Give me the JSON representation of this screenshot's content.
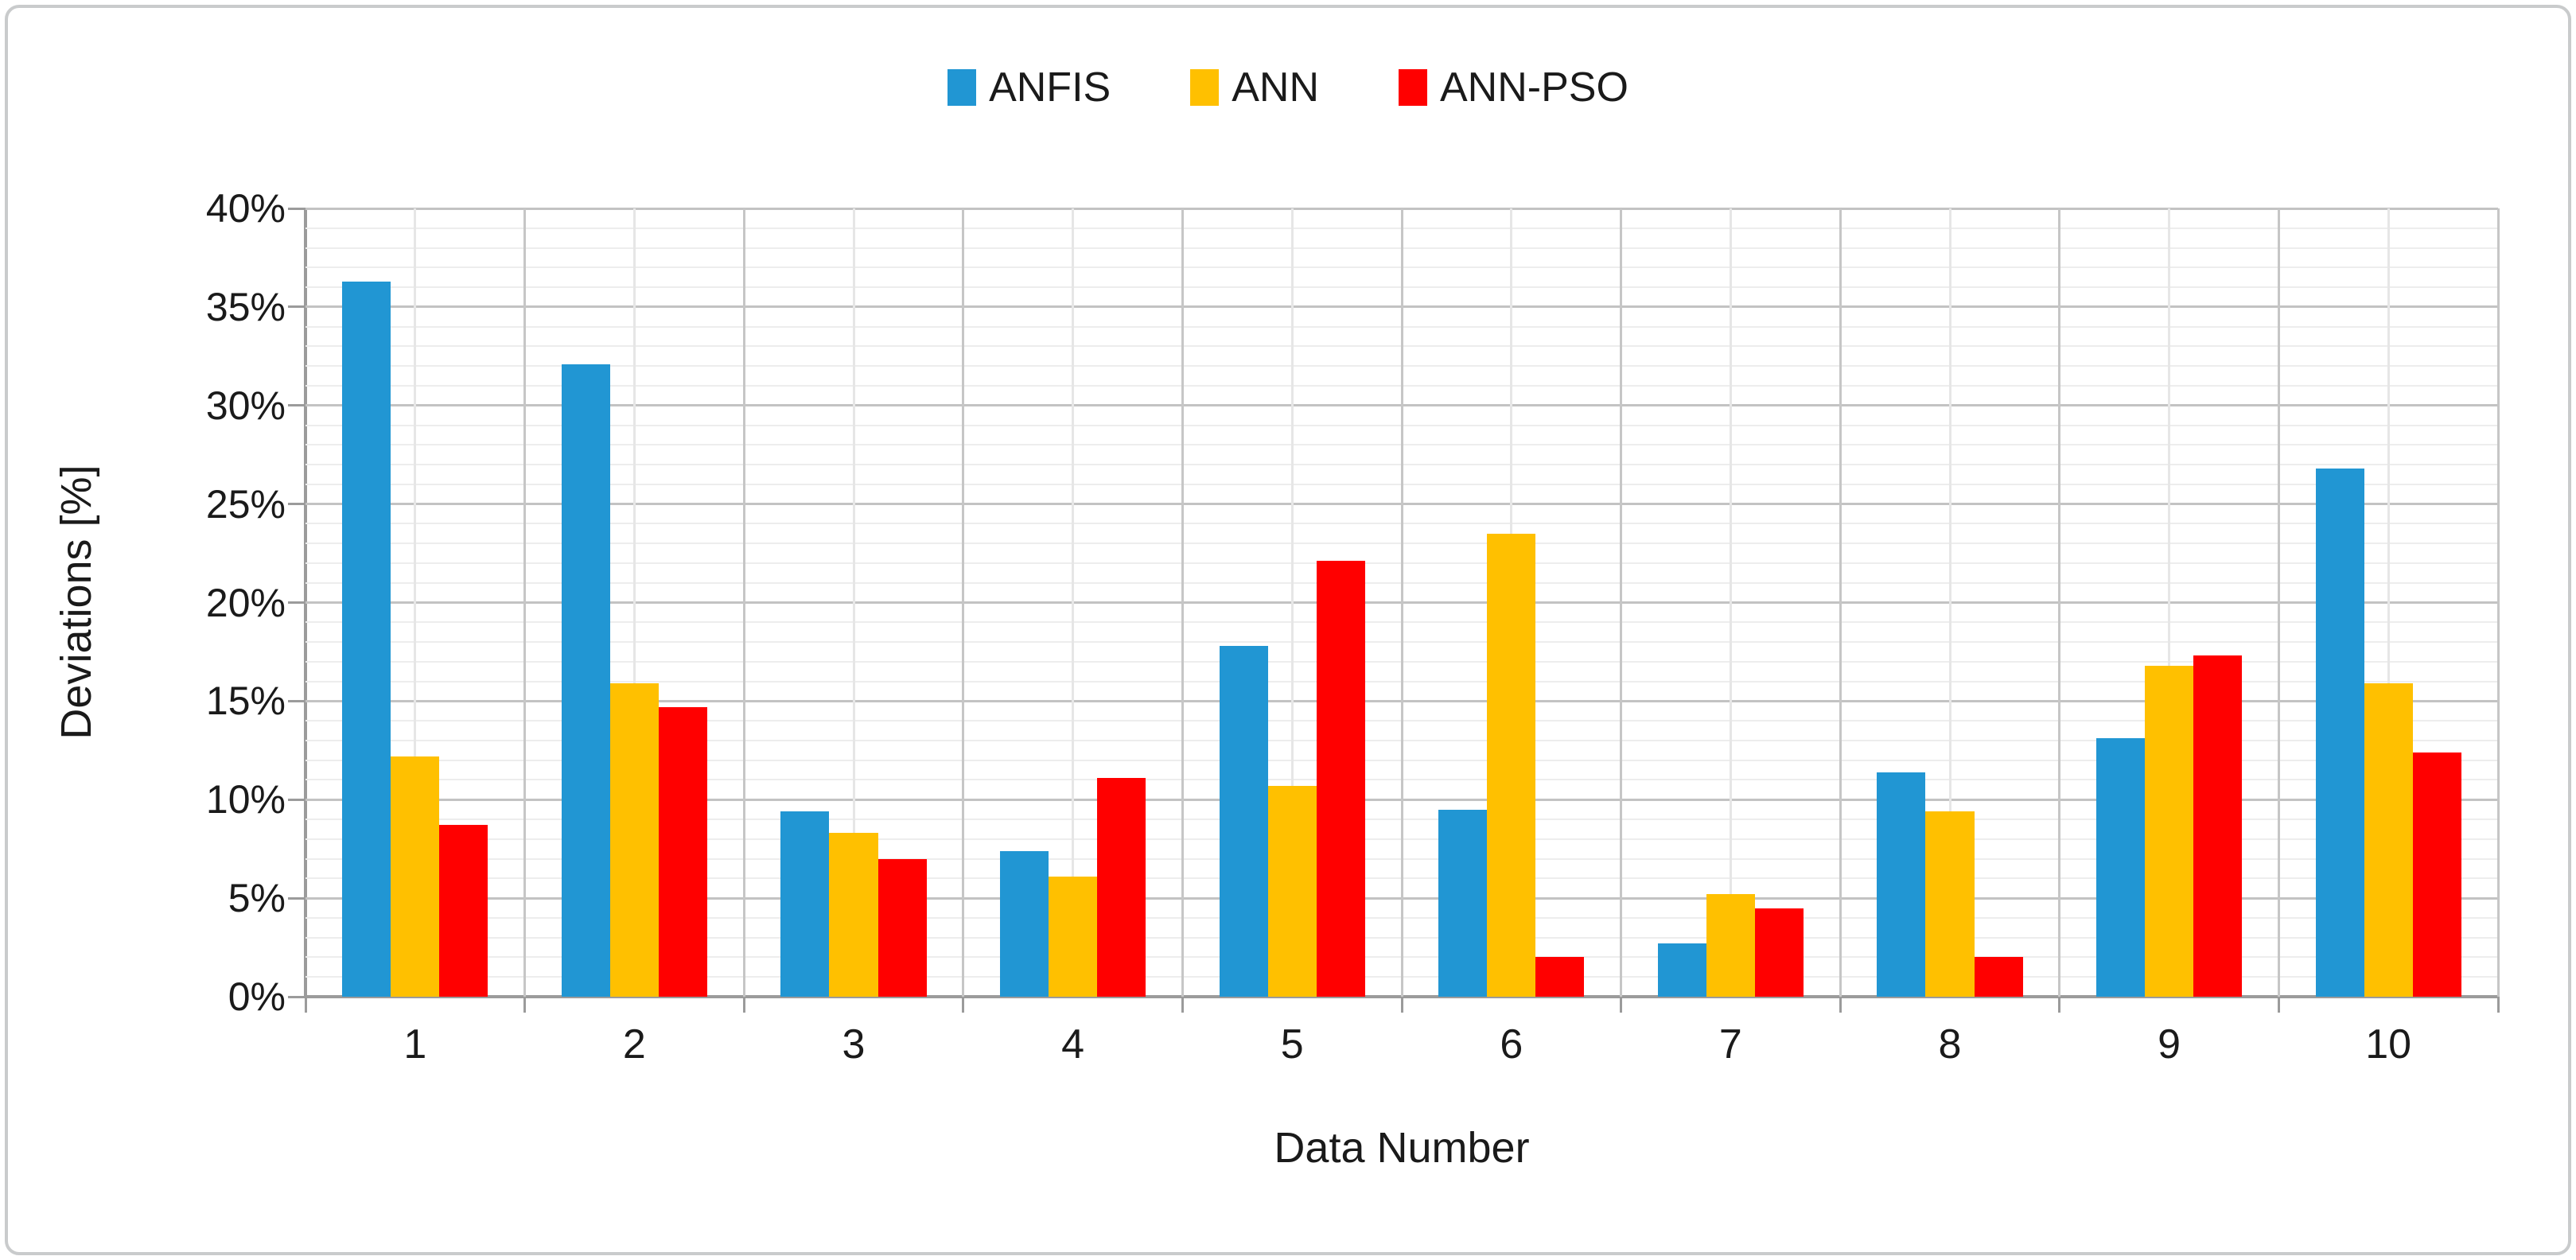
{
  "figure": {
    "background_color": "#ffffff",
    "frame_border_color": "#c9cbcc"
  },
  "chart_data": {
    "type": "bar",
    "title": "",
    "xlabel": "Data Number",
    "ylabel": "Deviations [%]",
    "categories": [
      "1",
      "2",
      "3",
      "4",
      "5",
      "6",
      "7",
      "8",
      "9",
      "10"
    ],
    "series": [
      {
        "name": "ANFIS",
        "color": "#2196d3",
        "values": [
          36.3,
          32.1,
          9.4,
          7.4,
          17.8,
          9.5,
          2.7,
          11.4,
          13.1,
          26.8
        ]
      },
      {
        "name": "ANN",
        "color": "#ffc000",
        "values": [
          12.2,
          15.9,
          8.3,
          6.1,
          10.7,
          23.5,
          5.2,
          9.4,
          16.8,
          15.9
        ]
      },
      {
        "name": "ANN-PSO",
        "color": "#ff0000",
        "values": [
          8.7,
          14.7,
          7.0,
          11.1,
          22.1,
          2.0,
          4.5,
          2.0,
          17.3,
          12.4
        ]
      }
    ],
    "ylim": [
      0,
      40
    ],
    "y_major_step": 5,
    "y_minor_step": 1,
    "y_tick_labels": [
      "0%",
      "5%",
      "10%",
      "15%",
      "20%",
      "25%",
      "30%",
      "35%",
      "40%"
    ],
    "grid": true,
    "legend_position": "top"
  }
}
